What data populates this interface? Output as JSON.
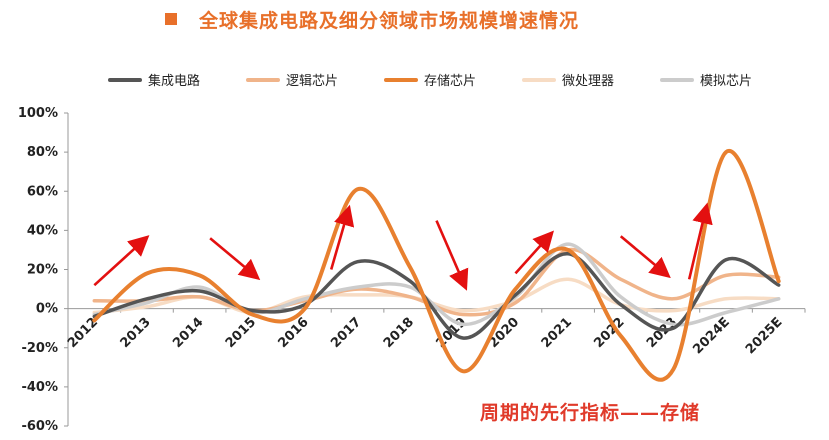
{
  "colors": {
    "title": "#e8702a",
    "annotation": "#e03a2a",
    "arrow": "#e31010",
    "axis": "#999999"
  },
  "chart_data": {
    "type": "line",
    "title": "全球集成电路及细分领域市场规模增速情况",
    "annotation": "周期的先行指标——存储",
    "categories": [
      "2012",
      "2013",
      "2014",
      "2015",
      "2016",
      "2017",
      "2018",
      "2019",
      "2020",
      "2021",
      "2022",
      "2023",
      "2024E",
      "2025E"
    ],
    "y_unit": "percent",
    "ylim": [
      -60,
      100
    ],
    "y_ticks": [
      -60,
      -40,
      -20,
      0,
      20,
      40,
      60,
      80,
      100
    ],
    "y_tick_labels": [
      "-60%",
      "-40%",
      "-20%",
      "0%",
      "20%",
      "40%",
      "60%",
      "80%",
      "100%"
    ],
    "grid": false,
    "legend_position": "top",
    "series": [
      {
        "name": "集成电路",
        "color": "#555555",
        "values": [
          -4,
          5,
          9,
          -1,
          2,
          24,
          14,
          -15,
          7,
          28,
          2,
          -10,
          25,
          12
        ]
      },
      {
        "name": "逻辑芯片",
        "color": "#f0b48a",
        "values": [
          4,
          4,
          6,
          -1,
          4,
          10,
          6,
          -3,
          3,
          30,
          15,
          5,
          17,
          16
        ]
      },
      {
        "name": "存储芯片",
        "color": "#e8802f",
        "values": [
          -6,
          18,
          17,
          -3,
          0,
          61,
          21,
          -32,
          10,
          30,
          -14,
          -31,
          80,
          14
        ]
      },
      {
        "name": "微处理器",
        "color": "#f7dcc4",
        "values": [
          -2,
          1,
          6,
          -2,
          6,
          7,
          6,
          -1,
          4,
          15,
          2,
          -1,
          5,
          5
        ]
      },
      {
        "name": "模拟芯片",
        "color": "#cccccc",
        "values": [
          -3,
          3,
          11,
          -2,
          5,
          11,
          11,
          -8,
          6,
          33,
          6,
          -8,
          -2,
          5
        ]
      }
    ],
    "trend_arrows": [
      {
        "from": {
          "x": 0.0,
          "y": 12
        },
        "to": {
          "x": 0.9,
          "y": 34
        }
      },
      {
        "from": {
          "x": 2.2,
          "y": 36
        },
        "to": {
          "x": 3.0,
          "y": 18
        }
      },
      {
        "from": {
          "x": 4.5,
          "y": 20
        },
        "to": {
          "x": 4.8,
          "y": 48
        }
      },
      {
        "from": {
          "x": 6.5,
          "y": 45
        },
        "to": {
          "x": 7.0,
          "y": 14
        }
      },
      {
        "from": {
          "x": 8.0,
          "y": 18
        },
        "to": {
          "x": 8.6,
          "y": 36
        }
      },
      {
        "from": {
          "x": 10.0,
          "y": 37
        },
        "to": {
          "x": 10.8,
          "y": 19
        }
      },
      {
        "from": {
          "x": 11.3,
          "y": 15
        },
        "to": {
          "x": 11.6,
          "y": 49
        }
      }
    ]
  }
}
